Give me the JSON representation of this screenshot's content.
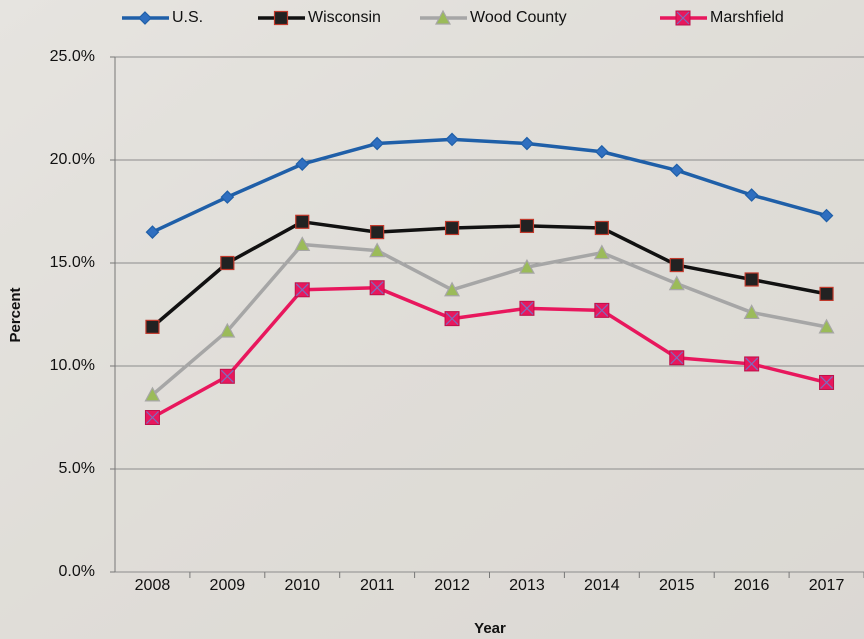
{
  "chart_data": {
    "type": "line",
    "x_label": "Year",
    "y_label": "Percent",
    "categories": [
      "2008",
      "2009",
      "2010",
      "2011",
      "2012",
      "2013",
      "2014",
      "2015",
      "2016",
      "2017"
    ],
    "series": [
      {
        "name": "U.S.",
        "color": "#1f5fa8",
        "marker": "diamond",
        "marker_color": "#2f6fc0",
        "values": [
          16.5,
          18.2,
          19.8,
          20.8,
          21.0,
          20.8,
          20.4,
          19.5,
          18.3,
          17.3
        ]
      },
      {
        "name": "Wisconsin",
        "color": "#111111",
        "marker": "square",
        "marker_color": "#222222",
        "values": [
          11.9,
          15.0,
          17.0,
          16.5,
          16.7,
          16.8,
          16.7,
          14.9,
          14.2,
          13.5
        ]
      },
      {
        "name": "Wood County",
        "color": "#a6a6a6",
        "marker": "triangle",
        "marker_color": "#9bbb59",
        "values": [
          8.6,
          11.7,
          15.9,
          15.6,
          13.7,
          14.8,
          15.5,
          14.0,
          12.6,
          11.9
        ]
      },
      {
        "name": "Marshfield",
        "color": "#e8175d",
        "marker": "xsquare",
        "marker_color": "#e8175d",
        "values": [
          7.5,
          9.5,
          13.7,
          13.8,
          12.3,
          12.8,
          12.7,
          10.4,
          10.1,
          9.2
        ]
      }
    ],
    "ylim": [
      0,
      25
    ],
    "yticks": [
      {
        "value": 0,
        "label": "0.0%"
      },
      {
        "value": 5,
        "label": "5.0%"
      },
      {
        "value": 10,
        "label": "10.0%"
      },
      {
        "value": 15,
        "label": "15.0%"
      },
      {
        "value": 20,
        "label": "20.0%"
      },
      {
        "value": 25,
        "label": "25.0%"
      }
    ],
    "grid": true,
    "legend": "top"
  }
}
